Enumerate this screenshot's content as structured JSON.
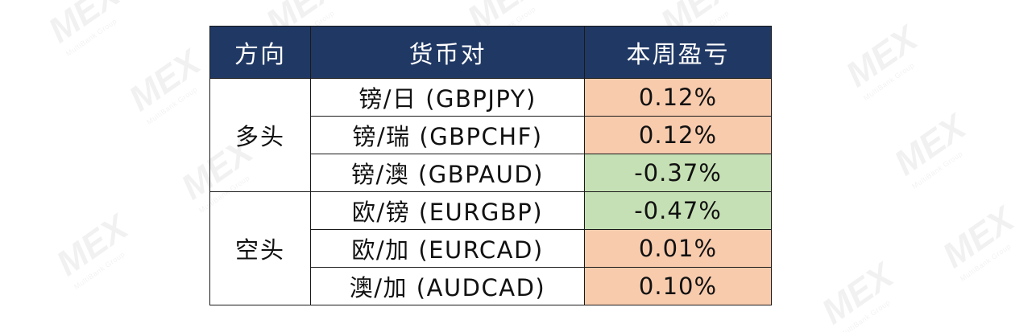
{
  "watermark": {
    "text": "MEX",
    "subtext": "MultiBank Group"
  },
  "table": {
    "headers": [
      "方向",
      "货币对",
      "本周盈亏"
    ],
    "groups": [
      {
        "direction": "多头",
        "rows": [
          {
            "pair": "镑/日 (GBPJPY)",
            "pnl": "0.12%",
            "sign": "positive"
          },
          {
            "pair": "镑/瑞 (GBPCHF)",
            "pnl": "0.12%",
            "sign": "positive"
          },
          {
            "pair": "镑/澳 (GBPAUD)",
            "pnl": "-0.37%",
            "sign": "negative"
          }
        ]
      },
      {
        "direction": "空头",
        "rows": [
          {
            "pair": "欧/镑 (EURGBP)",
            "pnl": "-0.47%",
            "sign": "negative"
          },
          {
            "pair": "欧/加 (EURCAD)",
            "pnl": "0.01%",
            "sign": "positive"
          },
          {
            "pair": "澳/加 (AUDCAD)",
            "pnl": "0.10%",
            "sign": "positive"
          }
        ]
      }
    ]
  },
  "colors": {
    "header_bg": "#203864",
    "header_text": "#ffffff",
    "positive_bg": "#f8cbad",
    "negative_bg": "#c5e0b4",
    "border": "#1a1a1a"
  }
}
